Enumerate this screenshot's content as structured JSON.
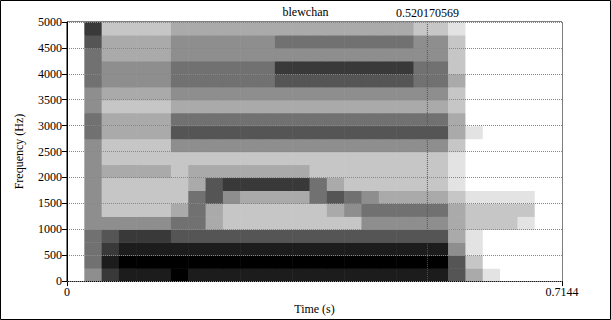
{
  "chart_data": {
    "type": "spectrogram",
    "title": "blewchan",
    "x_label": "Time (s)",
    "y_label": "Frequency (Hz)",
    "xlim": [
      0,
      0.7144
    ],
    "xticks": [
      0,
      0.7144
    ],
    "ylim": [
      0,
      5000
    ],
    "yticks": [
      0,
      500,
      1000,
      1500,
      2000,
      2500,
      3000,
      3500,
      4000,
      4500,
      5000
    ],
    "grid": true,
    "color": "#000000",
    "cursor": 0.520170569,
    "zlim": [
      0,
      9
    ],
    "x_bins": [
      0,
      0.025,
      0.05,
      0.075,
      0.1,
      0.125,
      0.15,
      0.175,
      0.2,
      0.225,
      0.25,
      0.275,
      0.3,
      0.325,
      0.35,
      0.375,
      0.4,
      0.425,
      0.45,
      0.475,
      0.5,
      0.525,
      0.55,
      0.575,
      0.6,
      0.625,
      0.65,
      0.675,
      0.7,
      0.7144
    ],
    "y_bins": [
      0,
      250,
      500,
      750,
      1000,
      1250,
      1500,
      1750,
      2000,
      2250,
      2500,
      2750,
      3000,
      3250,
      3500,
      3750,
      4000,
      4250,
      4500,
      4750,
      5000
    ],
    "cells": [
      [
        0,
        4,
        7,
        8,
        8,
        8,
        9,
        8,
        8,
        8,
        8,
        8,
        8,
        8,
        8,
        8,
        8,
        8,
        8,
        8,
        8,
        8,
        6,
        3,
        1,
        0,
        0,
        0,
        0
      ],
      [
        0,
        5,
        8,
        9,
        9,
        9,
        9,
        9,
        9,
        9,
        9,
        9,
        9,
        9,
        9,
        9,
        9,
        9,
        9,
        9,
        9,
        9,
        6,
        2,
        0,
        0,
        0,
        0,
        0
      ],
      [
        0,
        5,
        7,
        8,
        8,
        8,
        8,
        8,
        8,
        8,
        8,
        8,
        8,
        8,
        8,
        8,
        8,
        8,
        8,
        8,
        8,
        8,
        4,
        1,
        0,
        0,
        0,
        0,
        0
      ],
      [
        0,
        5,
        6,
        7,
        7,
        7,
        6,
        6,
        6,
        6,
        6,
        6,
        6,
        6,
        6,
        6,
        6,
        6,
        6,
        6,
        6,
        6,
        3,
        1,
        0,
        0,
        0,
        0,
        0
      ],
      [
        0,
        4,
        4,
        4,
        4,
        4,
        5,
        5,
        3,
        2,
        2,
        2,
        2,
        2,
        2,
        2,
        2,
        4,
        4,
        4,
        4,
        4,
        3,
        2,
        2,
        2,
        1,
        0,
        0
      ],
      [
        0,
        4,
        2,
        2,
        2,
        2,
        3,
        5,
        3,
        2,
        2,
        2,
        2,
        2,
        2,
        3,
        4,
        5,
        5,
        5,
        5,
        5,
        3,
        2,
        2,
        2,
        2,
        0,
        0
      ],
      [
        0,
        4,
        2,
        2,
        2,
        2,
        2,
        5,
        6,
        4,
        3,
        3,
        3,
        3,
        5,
        6,
        5,
        4,
        3,
        3,
        3,
        3,
        2,
        1,
        1,
        1,
        1,
        0,
        0
      ],
      [
        0,
        4,
        2,
        2,
        2,
        2,
        2,
        3,
        6,
        7,
        7,
        7,
        7,
        7,
        5,
        3,
        2,
        2,
        2,
        2,
        2,
        2,
        1,
        0,
        0,
        0,
        0,
        0,
        0
      ],
      [
        0,
        4,
        3,
        3,
        3,
        3,
        2,
        3,
        3,
        3,
        3,
        3,
        3,
        3,
        2,
        2,
        2,
        2,
        2,
        2,
        2,
        2,
        1,
        0,
        0,
        0,
        0,
        0,
        0
      ],
      [
        0,
        4,
        2,
        2,
        2,
        2,
        2,
        2,
        2,
        2,
        2,
        2,
        2,
        2,
        2,
        2,
        2,
        2,
        2,
        2,
        2,
        2,
        1,
        0,
        0,
        0,
        0,
        0,
        0
      ],
      [
        0,
        4,
        2,
        2,
        2,
        2,
        4,
        4,
        4,
        4,
        4,
        4,
        4,
        4,
        4,
        4,
        4,
        4,
        4,
        4,
        4,
        4,
        2,
        0,
        0,
        0,
        0,
        0,
        0
      ],
      [
        0,
        5,
        3,
        3,
        3,
        3,
        6,
        6,
        6,
        6,
        6,
        6,
        6,
        6,
        6,
        6,
        6,
        6,
        6,
        6,
        6,
        6,
        3,
        1,
        0,
        0,
        0,
        0,
        0
      ],
      [
        0,
        5,
        3,
        3,
        3,
        3,
        5,
        5,
        5,
        5,
        5,
        5,
        5,
        5,
        5,
        5,
        5,
        5,
        5,
        5,
        5,
        5,
        3,
        0,
        0,
        0,
        0,
        0,
        0
      ],
      [
        0,
        4,
        2,
        2,
        2,
        2,
        3,
        3,
        3,
        3,
        3,
        3,
        3,
        3,
        3,
        3,
        3,
        3,
        3,
        3,
        3,
        3,
        2,
        0,
        0,
        0,
        0,
        0,
        0
      ],
      [
        0,
        4,
        3,
        3,
        3,
        3,
        4,
        4,
        4,
        4,
        4,
        4,
        4,
        4,
        4,
        4,
        4,
        4,
        4,
        4,
        4,
        4,
        2,
        0,
        0,
        0,
        0,
        0,
        0
      ],
      [
        0,
        5,
        4,
        4,
        4,
        4,
        5,
        5,
        5,
        5,
        5,
        5,
        6,
        6,
        6,
        6,
        6,
        6,
        6,
        6,
        5,
        5,
        3,
        0,
        0,
        0,
        0,
        0,
        0
      ],
      [
        0,
        5,
        4,
        4,
        4,
        4,
        5,
        5,
        5,
        5,
        5,
        5,
        7,
        7,
        7,
        7,
        7,
        7,
        7,
        7,
        5,
        5,
        2,
        0,
        0,
        0,
        0,
        0,
        0
      ],
      [
        0,
        5,
        3,
        3,
        3,
        3,
        4,
        4,
        4,
        4,
        4,
        4,
        4,
        4,
        4,
        4,
        4,
        4,
        4,
        4,
        4,
        4,
        2,
        0,
        0,
        0,
        0,
        0,
        0
      ],
      [
        0,
        6,
        3,
        3,
        3,
        3,
        4,
        4,
        4,
        4,
        4,
        4,
        5,
        5,
        5,
        5,
        5,
        5,
        5,
        5,
        4,
        4,
        2,
        0,
        0,
        0,
        0,
        0,
        0
      ],
      [
        0,
        7,
        2,
        2,
        2,
        2,
        3,
        3,
        3,
        3,
        3,
        3,
        3,
        3,
        3,
        3,
        3,
        3,
        3,
        3,
        2,
        2,
        1,
        0,
        0,
        0,
        0,
        0,
        0
      ]
    ]
  }
}
